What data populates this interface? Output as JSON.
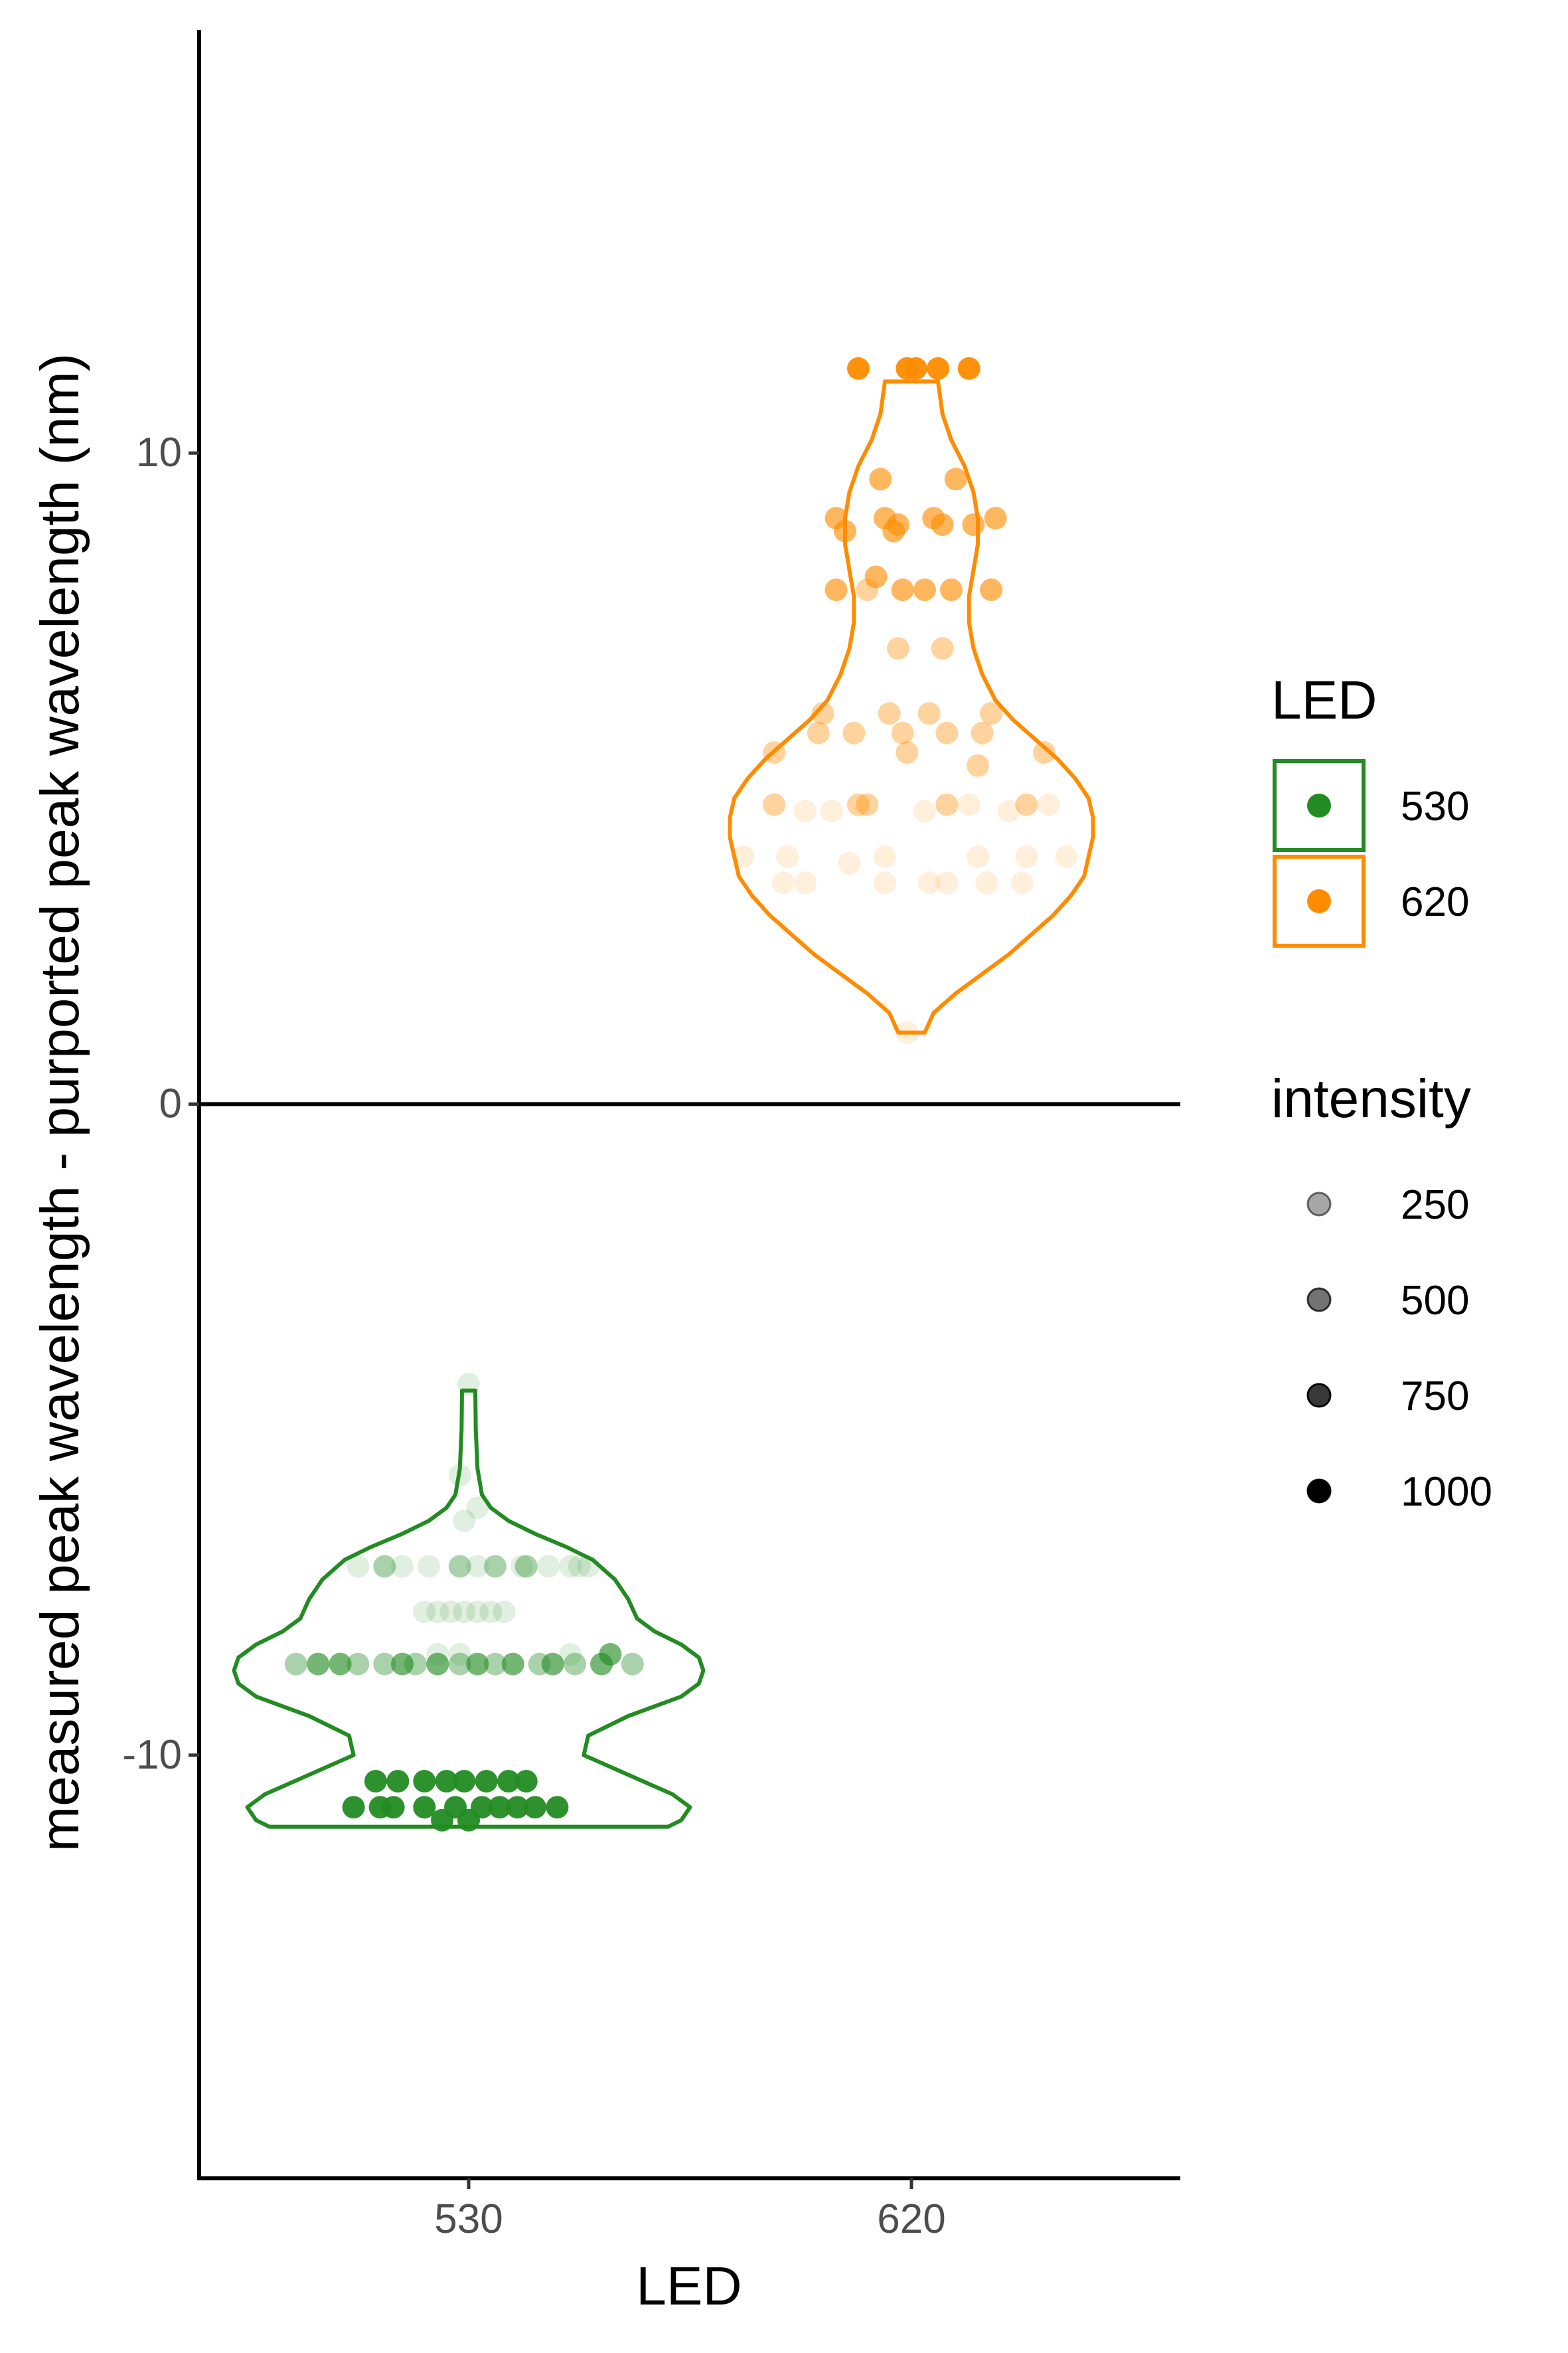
{
  "chart_data": {
    "type": "violin",
    "xlabel": "LED",
    "ylabel": "measured peak wavelength - purported peak wavelength (nm)",
    "x_categories": [
      "530",
      "620"
    ],
    "ylim": [
      -16.5,
      16.5
    ],
    "y_ticks": [
      {
        "value": 10,
        "label": "10"
      },
      {
        "value": 0,
        "label": "0"
      },
      {
        "value": -10,
        "label": "-10"
      }
    ],
    "hline": 0,
    "grid": false,
    "legend_position": "right",
    "legend_color": {
      "title": "LED",
      "entries": [
        {
          "label": "530",
          "color": "#228B22"
        },
        {
          "label": "620",
          "color": "#FF8C00"
        }
      ]
    },
    "legend_alpha": {
      "title": "intensity",
      "entries": [
        {
          "label": "250",
          "alpha": 0.35
        },
        {
          "label": "500",
          "alpha": 0.55
        },
        {
          "label": "750",
          "alpha": 0.78
        },
        {
          "label": "1000",
          "alpha": 1.0
        }
      ]
    },
    "series": [
      {
        "category": "530",
        "color": "#228B22",
        "violin": {
          "ymin": -11.1,
          "ymax": -4.4,
          "profile": [
            [
              -11.1,
              0.45
            ],
            [
              -11.0,
              0.48
            ],
            [
              -10.8,
              0.5
            ],
            [
              -10.6,
              0.46
            ],
            [
              -10.3,
              0.36
            ],
            [
              -10.0,
              0.26
            ],
            [
              -9.7,
              0.27
            ],
            [
              -9.4,
              0.36
            ],
            [
              -9.1,
              0.48
            ],
            [
              -8.9,
              0.52
            ],
            [
              -8.7,
              0.53
            ],
            [
              -8.5,
              0.52
            ],
            [
              -8.3,
              0.48
            ],
            [
              -8.1,
              0.42
            ],
            [
              -7.9,
              0.38
            ],
            [
              -7.6,
              0.36
            ],
            [
              -7.3,
              0.33
            ],
            [
              -7.0,
              0.28
            ],
            [
              -6.8,
              0.22
            ],
            [
              -6.6,
              0.15
            ],
            [
              -6.4,
              0.09
            ],
            [
              -6.2,
              0.05
            ],
            [
              -6.0,
              0.03
            ],
            [
              -5.6,
              0.02
            ],
            [
              -5.0,
              0.016
            ],
            [
              -4.4,
              0.015
            ]
          ]
        },
        "points": [
          {
            "x": -0.26,
            "y": -10.8,
            "intensity": 1000
          },
          {
            "x": -0.2,
            "y": -10.8,
            "intensity": 1000
          },
          {
            "x": -0.17,
            "y": -10.8,
            "intensity": 1000
          },
          {
            "x": -0.1,
            "y": -10.8,
            "intensity": 1000
          },
          {
            "x": -0.06,
            "y": -11.0,
            "intensity": 1000
          },
          {
            "x": -0.03,
            "y": -10.8,
            "intensity": 1000
          },
          {
            "x": 0.0,
            "y": -11.0,
            "intensity": 1000
          },
          {
            "x": 0.03,
            "y": -10.8,
            "intensity": 1000
          },
          {
            "x": 0.07,
            "y": -10.8,
            "intensity": 1000
          },
          {
            "x": 0.11,
            "y": -10.8,
            "intensity": 1000
          },
          {
            "x": 0.15,
            "y": -10.8,
            "intensity": 1000
          },
          {
            "x": 0.2,
            "y": -10.8,
            "intensity": 1000
          },
          {
            "x": -0.21,
            "y": -10.4,
            "intensity": 1000
          },
          {
            "x": -0.16,
            "y": -10.4,
            "intensity": 1000
          },
          {
            "x": -0.1,
            "y": -10.4,
            "intensity": 1000
          },
          {
            "x": -0.05,
            "y": -10.4,
            "intensity": 1000
          },
          {
            "x": -0.01,
            "y": -10.4,
            "intensity": 1000
          },
          {
            "x": 0.04,
            "y": -10.4,
            "intensity": 1000
          },
          {
            "x": 0.09,
            "y": -10.4,
            "intensity": 1000
          },
          {
            "x": 0.13,
            "y": -10.4,
            "intensity": 1000
          },
          {
            "x": -0.39,
            "y": -8.6,
            "intensity": 500
          },
          {
            "x": -0.34,
            "y": -8.6,
            "intensity": 750
          },
          {
            "x": -0.29,
            "y": -8.6,
            "intensity": 750
          },
          {
            "x": -0.25,
            "y": -8.6,
            "intensity": 500
          },
          {
            "x": -0.19,
            "y": -8.6,
            "intensity": 500
          },
          {
            "x": -0.15,
            "y": -8.6,
            "intensity": 750
          },
          {
            "x": -0.12,
            "y": -8.6,
            "intensity": 500
          },
          {
            "x": -0.07,
            "y": -8.6,
            "intensity": 750
          },
          {
            "x": -0.02,
            "y": -8.6,
            "intensity": 500
          },
          {
            "x": 0.02,
            "y": -8.6,
            "intensity": 750
          },
          {
            "x": 0.06,
            "y": -8.6,
            "intensity": 500
          },
          {
            "x": 0.1,
            "y": -8.6,
            "intensity": 750
          },
          {
            "x": 0.16,
            "y": -8.6,
            "intensity": 500
          },
          {
            "x": 0.19,
            "y": -8.6,
            "intensity": 750
          },
          {
            "x": 0.24,
            "y": -8.6,
            "intensity": 500
          },
          {
            "x": 0.3,
            "y": -8.6,
            "intensity": 750
          },
          {
            "x": 0.37,
            "y": -8.6,
            "intensity": 500
          },
          {
            "x": 0.32,
            "y": -8.45,
            "intensity": 750
          },
          {
            "x": -0.02,
            "y": -8.45,
            "intensity": 250
          },
          {
            "x": 0.23,
            "y": -8.45,
            "intensity": 250
          },
          {
            "x": -0.07,
            "y": -8.45,
            "intensity": 250
          },
          {
            "x": -0.1,
            "y": -7.8,
            "intensity": 250
          },
          {
            "x": -0.07,
            "y": -7.8,
            "intensity": 250
          },
          {
            "x": -0.04,
            "y": -7.8,
            "intensity": 250
          },
          {
            "x": -0.01,
            "y": -7.8,
            "intensity": 250
          },
          {
            "x": 0.02,
            "y": -7.8,
            "intensity": 250
          },
          {
            "x": 0.05,
            "y": -7.8,
            "intensity": 250
          },
          {
            "x": 0.08,
            "y": -7.8,
            "intensity": 250
          },
          {
            "x": -0.25,
            "y": -7.1,
            "intensity": 250
          },
          {
            "x": -0.19,
            "y": -7.1,
            "intensity": 500
          },
          {
            "x": -0.15,
            "y": -7.1,
            "intensity": 250
          },
          {
            "x": -0.09,
            "y": -7.1,
            "intensity": 250
          },
          {
            "x": -0.02,
            "y": -7.1,
            "intensity": 500
          },
          {
            "x": 0.02,
            "y": -7.1,
            "intensity": 250
          },
          {
            "x": 0.06,
            "y": -7.1,
            "intensity": 500
          },
          {
            "x": 0.12,
            "y": -7.1,
            "intensity": 250
          },
          {
            "x": 0.13,
            "y": -7.1,
            "intensity": 500
          },
          {
            "x": 0.18,
            "y": -7.1,
            "intensity": 250
          },
          {
            "x": 0.23,
            "y": -7.1,
            "intensity": 250
          },
          {
            "x": 0.25,
            "y": -7.1,
            "intensity": 250
          },
          {
            "x": 0.27,
            "y": -7.1,
            "intensity": 250
          },
          {
            "x": -0.01,
            "y": -6.4,
            "intensity": 250
          },
          {
            "x": 0.02,
            "y": -6.2,
            "intensity": 250
          },
          {
            "x": -0.02,
            "y": -5.7,
            "intensity": 250
          },
          {
            "x": 0.0,
            "y": -4.3,
            "intensity": 250
          }
        ]
      },
      {
        "category": "620",
        "color": "#FF8C00",
        "violin": {
          "ymin": 1.1,
          "ymax": 11.1,
          "profile": [
            [
              1.1,
              0.03
            ],
            [
              1.4,
              0.05
            ],
            [
              1.7,
              0.1
            ],
            [
              2.0,
              0.16
            ],
            [
              2.3,
              0.22
            ],
            [
              2.6,
              0.27
            ],
            [
              2.9,
              0.32
            ],
            [
              3.2,
              0.36
            ],
            [
              3.5,
              0.39
            ],
            [
              3.8,
              0.4
            ],
            [
              4.1,
              0.41
            ],
            [
              4.4,
              0.41
            ],
            [
              4.7,
              0.4
            ],
            [
              5.0,
              0.37
            ],
            [
              5.3,
              0.33
            ],
            [
              5.6,
              0.28
            ],
            [
              5.9,
              0.23
            ],
            [
              6.2,
              0.19
            ],
            [
              6.6,
              0.16
            ],
            [
              7.0,
              0.14
            ],
            [
              7.4,
              0.13
            ],
            [
              7.8,
              0.13
            ],
            [
              8.2,
              0.14
            ],
            [
              8.6,
              0.15
            ],
            [
              9.0,
              0.15
            ],
            [
              9.4,
              0.14
            ],
            [
              9.8,
              0.12
            ],
            [
              10.2,
              0.09
            ],
            [
              10.6,
              0.07
            ],
            [
              11.1,
              0.06
            ]
          ]
        },
        "points": [
          {
            "x": -0.12,
            "y": 11.3,
            "intensity": 1000
          },
          {
            "x": -0.01,
            "y": 11.3,
            "intensity": 1000
          },
          {
            "x": 0.01,
            "y": 11.3,
            "intensity": 1000
          },
          {
            "x": 0.06,
            "y": 11.3,
            "intensity": 1000
          },
          {
            "x": 0.13,
            "y": 11.3,
            "intensity": 1000
          },
          {
            "x": -0.07,
            "y": 9.6,
            "intensity": 750
          },
          {
            "x": 0.1,
            "y": 9.6,
            "intensity": 750
          },
          {
            "x": -0.17,
            "y": 9.0,
            "intensity": 750
          },
          {
            "x": -0.06,
            "y": 9.0,
            "intensity": 750
          },
          {
            "x": -0.04,
            "y": 8.8,
            "intensity": 750
          },
          {
            "x": -0.03,
            "y": 8.9,
            "intensity": 750
          },
          {
            "x": 0.05,
            "y": 9.0,
            "intensity": 750
          },
          {
            "x": 0.07,
            "y": 8.9,
            "intensity": 750
          },
          {
            "x": 0.14,
            "y": 8.9,
            "intensity": 750
          },
          {
            "x": 0.19,
            "y": 9.0,
            "intensity": 750
          },
          {
            "x": -0.15,
            "y": 8.8,
            "intensity": 750
          },
          {
            "x": -0.17,
            "y": 7.9,
            "intensity": 750
          },
          {
            "x": -0.08,
            "y": 8.1,
            "intensity": 750
          },
          {
            "x": -0.1,
            "y": 7.9,
            "intensity": 500
          },
          {
            "x": -0.02,
            "y": 7.9,
            "intensity": 750
          },
          {
            "x": 0.03,
            "y": 7.9,
            "intensity": 750
          },
          {
            "x": 0.09,
            "y": 7.9,
            "intensity": 750
          },
          {
            "x": 0.18,
            "y": 7.9,
            "intensity": 750
          },
          {
            "x": -0.03,
            "y": 7.0,
            "intensity": 500
          },
          {
            "x": 0.07,
            "y": 7.0,
            "intensity": 500
          },
          {
            "x": -0.2,
            "y": 6.0,
            "intensity": 500
          },
          {
            "x": -0.05,
            "y": 6.0,
            "intensity": 500
          },
          {
            "x": 0.04,
            "y": 6.0,
            "intensity": 500
          },
          {
            "x": 0.18,
            "y": 6.0,
            "intensity": 500
          },
          {
            "x": -0.21,
            "y": 5.7,
            "intensity": 500
          },
          {
            "x": -0.13,
            "y": 5.7,
            "intensity": 500
          },
          {
            "x": -0.02,
            "y": 5.7,
            "intensity": 500
          },
          {
            "x": 0.08,
            "y": 5.7,
            "intensity": 500
          },
          {
            "x": 0.16,
            "y": 5.7,
            "intensity": 500
          },
          {
            "x": -0.31,
            "y": 5.4,
            "intensity": 500
          },
          {
            "x": -0.01,
            "y": 5.4,
            "intensity": 500
          },
          {
            "x": 0.15,
            "y": 5.2,
            "intensity": 500
          },
          {
            "x": 0.3,
            "y": 5.4,
            "intensity": 500
          },
          {
            "x": -0.31,
            "y": 4.6,
            "intensity": 500
          },
          {
            "x": -0.24,
            "y": 4.5,
            "intensity": 250
          },
          {
            "x": -0.18,
            "y": 4.5,
            "intensity": 250
          },
          {
            "x": -0.12,
            "y": 4.6,
            "intensity": 500
          },
          {
            "x": -0.1,
            "y": 4.6,
            "intensity": 500
          },
          {
            "x": 0.03,
            "y": 4.5,
            "intensity": 250
          },
          {
            "x": 0.08,
            "y": 4.6,
            "intensity": 500
          },
          {
            "x": 0.13,
            "y": 4.6,
            "intensity": 250
          },
          {
            "x": 0.22,
            "y": 4.5,
            "intensity": 250
          },
          {
            "x": 0.26,
            "y": 4.6,
            "intensity": 500
          },
          {
            "x": 0.31,
            "y": 4.6,
            "intensity": 250
          },
          {
            "x": -0.38,
            "y": 3.8,
            "intensity": 250
          },
          {
            "x": -0.28,
            "y": 3.8,
            "intensity": 250
          },
          {
            "x": -0.14,
            "y": 3.7,
            "intensity": 250
          },
          {
            "x": -0.06,
            "y": 3.8,
            "intensity": 250
          },
          {
            "x": 0.15,
            "y": 3.8,
            "intensity": 250
          },
          {
            "x": 0.26,
            "y": 3.8,
            "intensity": 250
          },
          {
            "x": 0.35,
            "y": 3.8,
            "intensity": 250
          },
          {
            "x": -0.29,
            "y": 3.4,
            "intensity": 250
          },
          {
            "x": -0.24,
            "y": 3.4,
            "intensity": 250
          },
          {
            "x": -0.06,
            "y": 3.4,
            "intensity": 250
          },
          {
            "x": 0.04,
            "y": 3.4,
            "intensity": 250
          },
          {
            "x": 0.08,
            "y": 3.4,
            "intensity": 250
          },
          {
            "x": 0.17,
            "y": 3.4,
            "intensity": 250
          },
          {
            "x": 0.25,
            "y": 3.4,
            "intensity": 250
          },
          {
            "x": -0.01,
            "y": 1.1,
            "intensity": 250
          }
        ]
      }
    ]
  }
}
